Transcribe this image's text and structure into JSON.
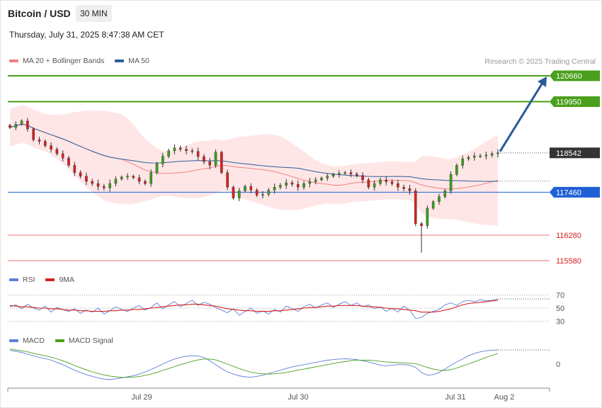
{
  "header": {
    "title": "Bitcoin / USD",
    "timeframe": "30 MIN",
    "datetime": "Thursday, July 31, 2025 8:47:38 AM CET",
    "credit": "Research © 2025 Trading Central"
  },
  "colors": {
    "ma20": "#f08080",
    "bollinger_fill": "#ffe3e3",
    "ma50": "#2e5b9a",
    "support_resistance_green": "#4aa01c",
    "support_line_blue": "#1f5fd6",
    "support_red": "#f5a0a0",
    "candle_up": "#3aa01a",
    "candle_down": "#d92020",
    "current_price_bg": "#333333",
    "arrow": "#2b5a9a",
    "rsi": "#5b7fd6",
    "rsi_ma": "#d42020",
    "macd": "#5b7fd6",
    "macd_signal": "#4aa01c"
  },
  "legends": {
    "price": [
      {
        "label": "MA 20 + Bollinger Bands",
        "color": "#f08080"
      },
      {
        "label": "MA 50",
        "color": "#2e5b9a"
      }
    ],
    "rsi": [
      {
        "label": "RSI",
        "color": "#5b7fd6"
      },
      {
        "label": "9MA",
        "color": "#d42020"
      }
    ],
    "macd": [
      {
        "label": "MACD",
        "color": "#5b7fd6"
      },
      {
        "label": "MACD Signal",
        "color": "#4aa01c"
      }
    ]
  },
  "chart_data": [
    {
      "type": "candlestick",
      "panel": "price",
      "x_labels": [
        "Jul 29",
        "Jul 30",
        "Jul 31",
        "Aug 2"
      ],
      "levels": [
        {
          "value": 120660,
          "label": "120660",
          "kind": "resistance"
        },
        {
          "value": 119950,
          "label": "119950",
          "kind": "resistance"
        },
        {
          "value": 118542,
          "label": "118542",
          "kind": "current"
        },
        {
          "value": 117460,
          "label": "117460",
          "kind": "pivot"
        },
        {
          "value": 116280,
          "label": "116280",
          "kind": "support"
        },
        {
          "value": 115580,
          "label": "115580",
          "kind": "support"
        }
      ],
      "ylim": [
        115400,
        121000
      ],
      "close_path": [
        119240,
        119330,
        119420,
        119200,
        118900,
        118860,
        118740,
        118640,
        118520,
        118400,
        118200,
        118000,
        117900,
        117760,
        117700,
        117620,
        117580,
        117700,
        117820,
        117880,
        117900,
        117860,
        117760,
        117700,
        118000,
        118240,
        118450,
        118600,
        118680,
        118640,
        118600,
        118580,
        118440,
        118300,
        118200,
        118560,
        118000,
        117600,
        117300,
        117500,
        117620,
        117520,
        117380,
        117400,
        117520,
        117600,
        117650,
        117720,
        117680,
        117600,
        117700,
        117750,
        117800,
        117850,
        117900,
        117950,
        117980,
        118000,
        117960,
        117920,
        117800,
        117600,
        117700,
        117800,
        117750,
        117700,
        117600,
        117560,
        117500,
        116600,
        116540,
        117020,
        117200,
        117340,
        117500,
        117950,
        118200,
        118380,
        118420,
        118460,
        118460,
        118480,
        118520,
        118542
      ],
      "forecast_arrow": {
        "from": 118542,
        "to": 120660
      }
    },
    {
      "type": "line",
      "panel": "rsi",
      "y_ticks": [
        70,
        50,
        30
      ],
      "ylim": [
        20,
        80
      ],
      "series": [
        {
          "name": "RSI",
          "values": [
            52,
            55,
            49,
            56,
            50,
            47,
            53,
            44,
            51,
            48,
            45,
            49,
            42,
            47,
            44,
            50,
            41,
            46,
            52,
            48,
            45,
            50,
            54,
            47,
            51,
            58,
            49,
            55,
            60,
            52,
            57,
            62,
            54,
            59,
            56,
            51,
            47,
            43,
            49,
            39,
            45,
            50,
            42,
            46,
            41,
            48,
            44,
            53,
            49,
            45,
            52,
            56,
            50,
            55,
            58,
            51,
            56,
            60,
            54,
            58,
            52,
            55,
            49,
            52,
            45,
            50,
            44,
            53,
            47,
            34,
            36,
            42,
            45,
            48,
            55,
            58,
            54,
            60,
            62,
            60,
            63,
            61,
            62,
            64
          ]
        },
        {
          "name": "9MA",
          "values": [
            54,
            53,
            52,
            52,
            51,
            50,
            50,
            49,
            49,
            48,
            47,
            47,
            46,
            46,
            45,
            45,
            45,
            46,
            46,
            47,
            47,
            48,
            48,
            49,
            50,
            51,
            52,
            53,
            54,
            55,
            55,
            56,
            56,
            55,
            54,
            53,
            51,
            49,
            48,
            47,
            46,
            46,
            45,
            45,
            45,
            46,
            46,
            47,
            48,
            49,
            50,
            51,
            51,
            52,
            53,
            53,
            54,
            54,
            54,
            54,
            53,
            52,
            52,
            51,
            50,
            49,
            49,
            48,
            47,
            46,
            44,
            44,
            44,
            45,
            47,
            49,
            52,
            55,
            57,
            58,
            59,
            60,
            61,
            62
          ]
        }
      ]
    },
    {
      "type": "line",
      "panel": "macd",
      "y_ticks": [
        0
      ],
      "ylim": [
        -300,
        400
      ],
      "series": [
        {
          "name": "MACD",
          "values": [
            250,
            230,
            210,
            180,
            150,
            120,
            100,
            70,
            30,
            -10,
            -60,
            -110,
            -150,
            -190,
            -220,
            -250,
            -270,
            -280,
            -265,
            -250,
            -230,
            -210,
            -180,
            -140,
            -100,
            -50,
            0,
            50,
            90,
            120,
            140,
            150,
            145,
            120,
            60,
            -10,
            -80,
            -140,
            -180,
            -210,
            -230,
            -235,
            -220,
            -200,
            -170,
            -140,
            -110,
            -80,
            -50,
            -30,
            -10,
            10,
            30,
            50,
            70,
            80,
            90,
            95,
            90,
            80,
            60,
            40,
            10,
            -20,
            -30,
            -20,
            -10,
            -10,
            -20,
            -60,
            -150,
            -200,
            -190,
            -150,
            -90,
            -20,
            40,
            90,
            150,
            190,
            220,
            240,
            250,
            255
          ]
        },
        {
          "name": "MACD Signal",
          "values": [
            270,
            255,
            240,
            220,
            195,
            170,
            150,
            125,
            95,
            60,
            20,
            -25,
            -65,
            -105,
            -140,
            -170,
            -195,
            -215,
            -230,
            -238,
            -240,
            -235,
            -225,
            -205,
            -180,
            -150,
            -115,
            -80,
            -45,
            -10,
            20,
            50,
            75,
            90,
            90,
            75,
            40,
            0,
            -40,
            -80,
            -115,
            -145,
            -165,
            -175,
            -180,
            -175,
            -165,
            -150,
            -130,
            -110,
            -90,
            -70,
            -50,
            -30,
            -10,
            10,
            30,
            45,
            60,
            70,
            72,
            70,
            62,
            50,
            40,
            32,
            25,
            20,
            15,
            5,
            -25,
            -60,
            -90,
            -110,
            -115,
            -100,
            -70,
            -35,
            0,
            40,
            80,
            120,
            160,
            190
          ]
        }
      ]
    }
  ]
}
